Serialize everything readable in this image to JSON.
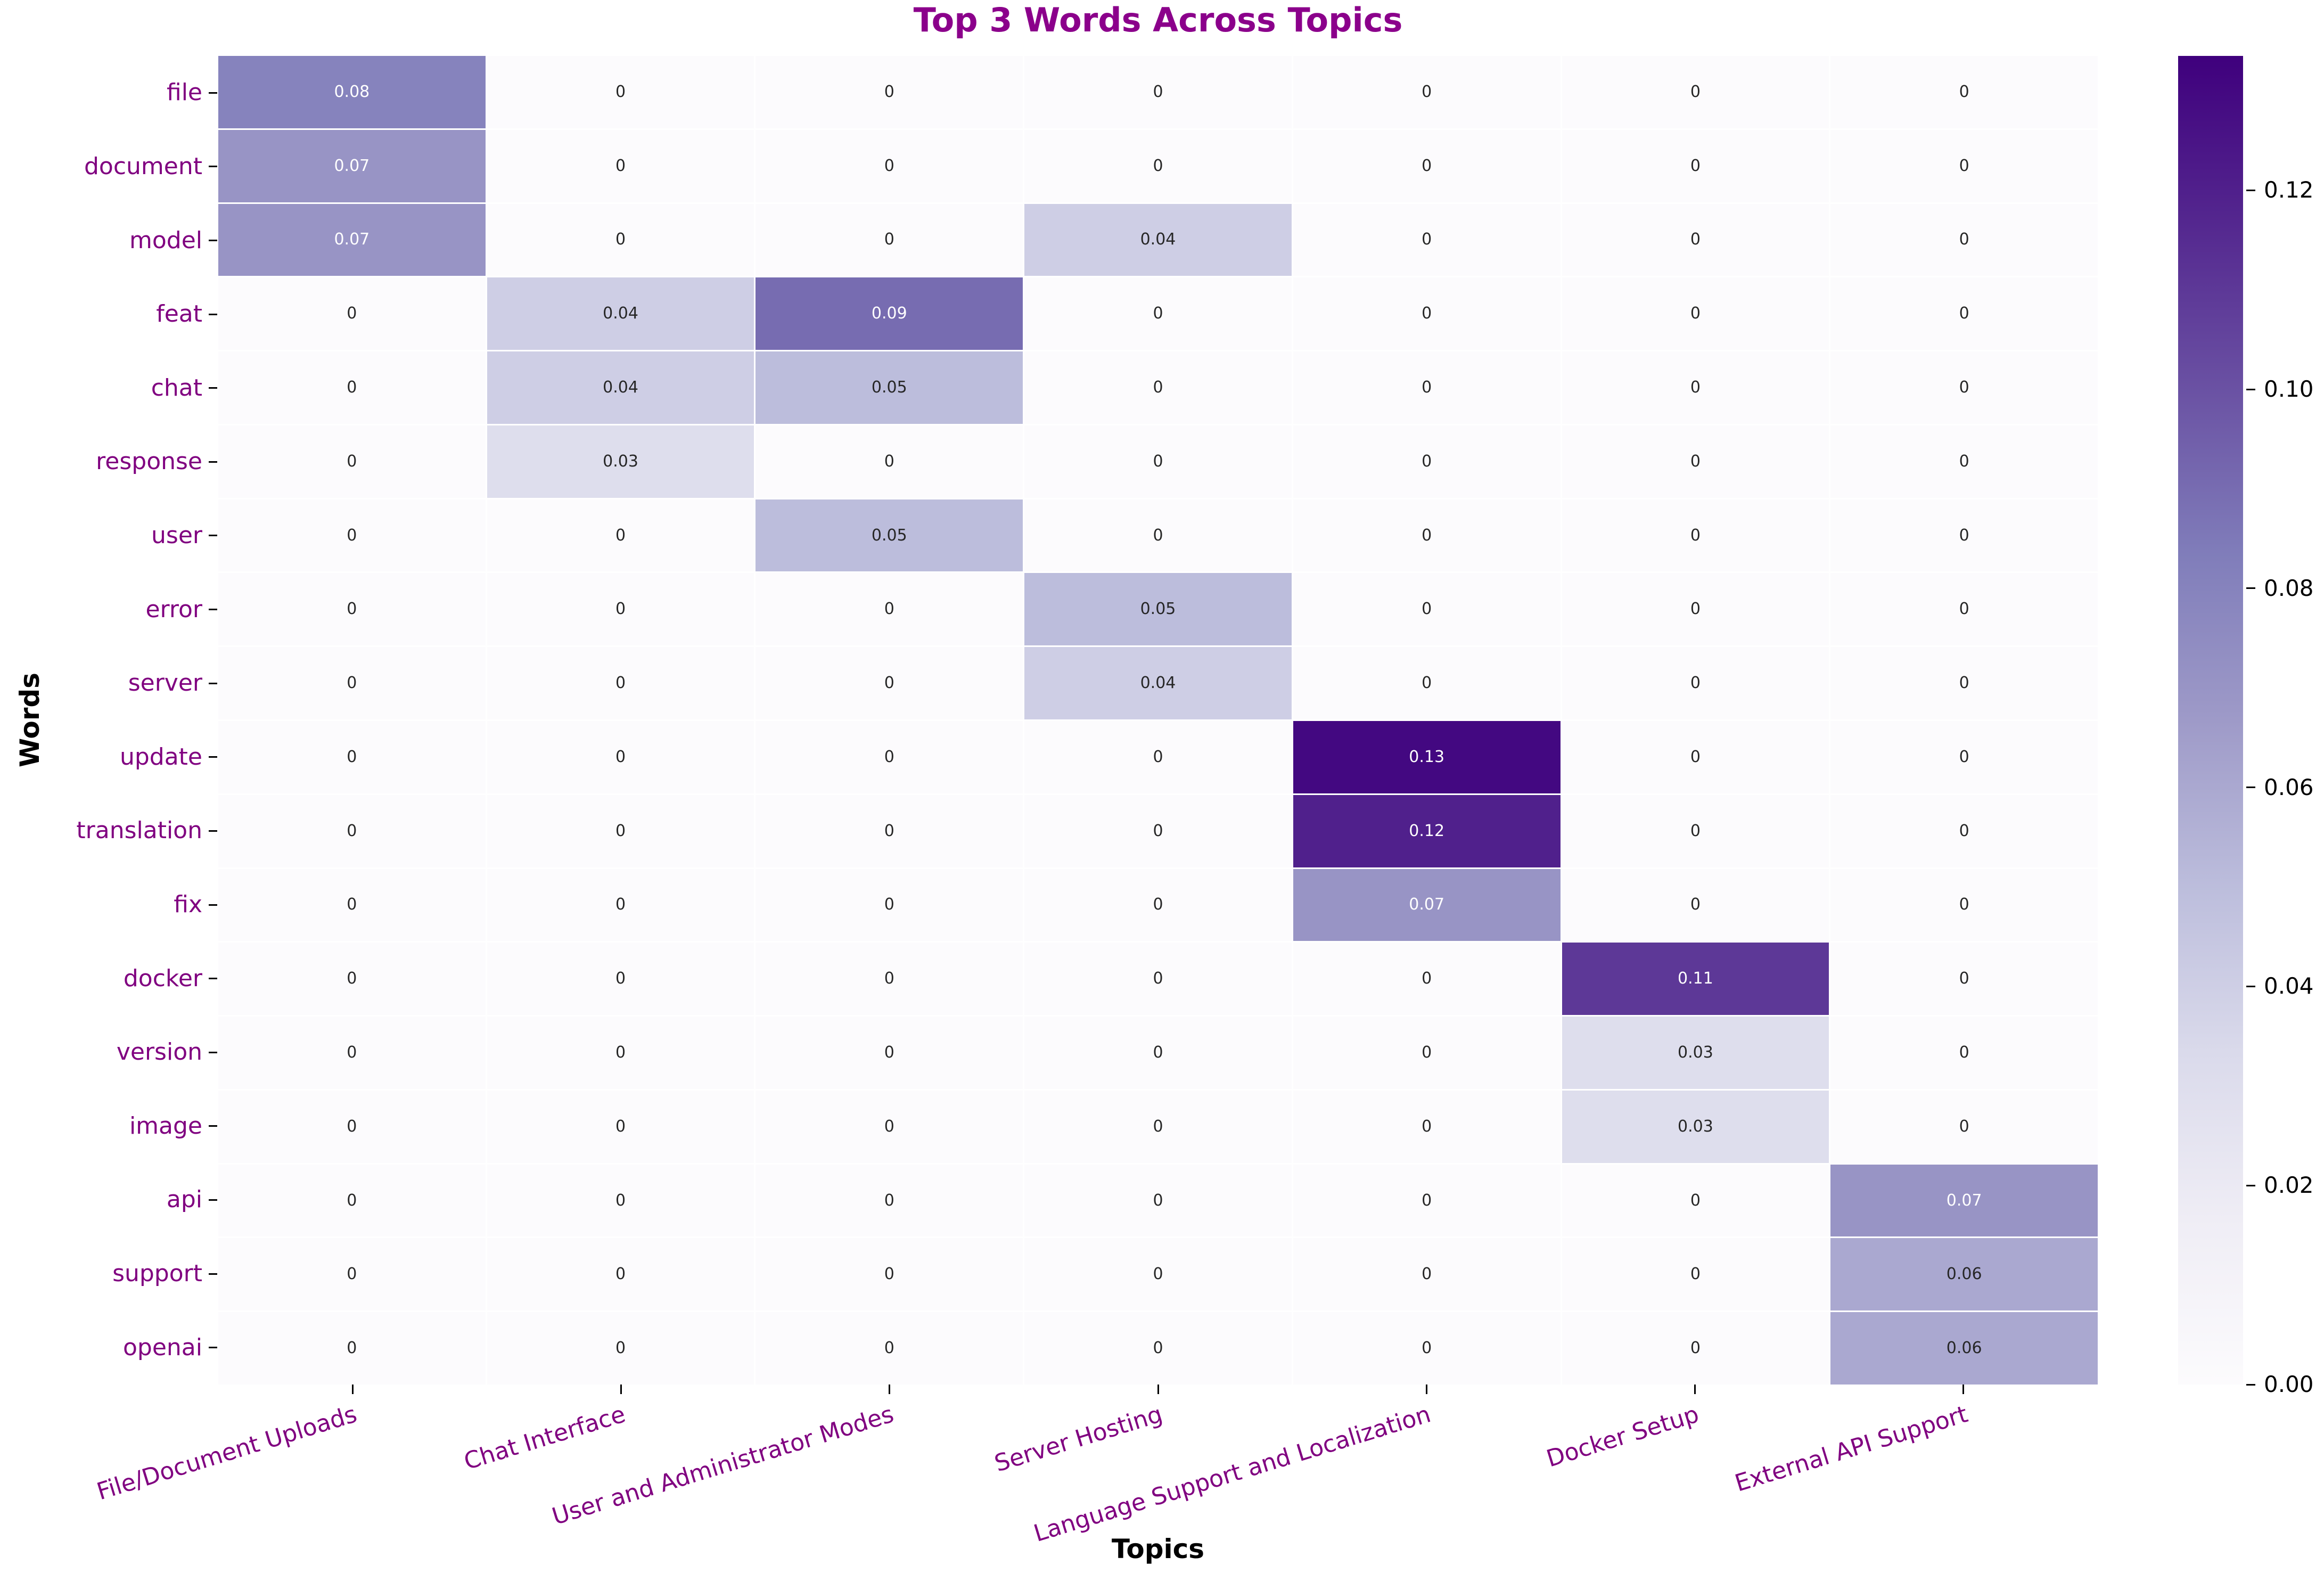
{
  "chart_data": {
    "type": "heatmap",
    "title": "Top 3 Words Across Topics",
    "xlabel": "Topics",
    "ylabel": "Words",
    "x_categories": [
      "File/Document Uploads",
      "Chat Interface",
      "User and Administrator Modes",
      "Server Hosting",
      "Language Support and Localization",
      "Docker Setup",
      "External API Support"
    ],
    "y_categories": [
      "file",
      "document",
      "model",
      "feat",
      "chat",
      "response",
      "user",
      "error",
      "server",
      "update",
      "translation",
      "fix",
      "docker",
      "version",
      "image",
      "api",
      "support",
      "openai"
    ],
    "matrix": [
      [
        0.08,
        0,
        0,
        0,
        0,
        0,
        0
      ],
      [
        0.07,
        0,
        0,
        0,
        0,
        0,
        0
      ],
      [
        0.07,
        0,
        0,
        0.04,
        0,
        0,
        0
      ],
      [
        0,
        0.04,
        0.09,
        0,
        0,
        0,
        0
      ],
      [
        0,
        0.04,
        0.05,
        0,
        0,
        0,
        0
      ],
      [
        0,
        0.03,
        0,
        0,
        0,
        0,
        0
      ],
      [
        0,
        0,
        0.05,
        0,
        0,
        0,
        0
      ],
      [
        0,
        0,
        0,
        0.05,
        0,
        0,
        0
      ],
      [
        0,
        0,
        0,
        0.04,
        0,
        0,
        0
      ],
      [
        0,
        0,
        0,
        0,
        0.13,
        0,
        0
      ],
      [
        0,
        0,
        0,
        0,
        0.12,
        0,
        0
      ],
      [
        0,
        0,
        0,
        0,
        0.07,
        0,
        0
      ],
      [
        0,
        0,
        0,
        0,
        0,
        0.11,
        0
      ],
      [
        0,
        0,
        0,
        0,
        0,
        0.03,
        0
      ],
      [
        0,
        0,
        0,
        0,
        0,
        0.03,
        0
      ],
      [
        0,
        0,
        0,
        0,
        0,
        0,
        0.07
      ],
      [
        0,
        0,
        0,
        0,
        0,
        0,
        0.06
      ],
      [
        0,
        0,
        0,
        0,
        0,
        0,
        0.06
      ]
    ],
    "vmin": 0,
    "vmax": 0.1335,
    "colormap": "Purples",
    "colormap_stops": [
      "#fcfbfd",
      "#efedf5",
      "#dadaeb",
      "#bcbddc",
      "#9e9ac8",
      "#807dba",
      "#6a51a3",
      "#54278f",
      "#3f007d"
    ],
    "colorbar_tick_labels": [
      "0.00",
      "0.02",
      "0.04",
      "0.06",
      "0.08",
      "0.10",
      "0.12"
    ],
    "annotations_shown": true,
    "zero_label": "0",
    "grid": false,
    "legend_position": "right-colorbar"
  },
  "style": {
    "title_color": "#8B008B",
    "tick_label_color": "#800080",
    "axis_title_color": "#000000",
    "annotation_dark": "#262626",
    "annotation_light": "#ffffff",
    "tick_mark_color": "#000000",
    "background": "#ffffff"
  }
}
